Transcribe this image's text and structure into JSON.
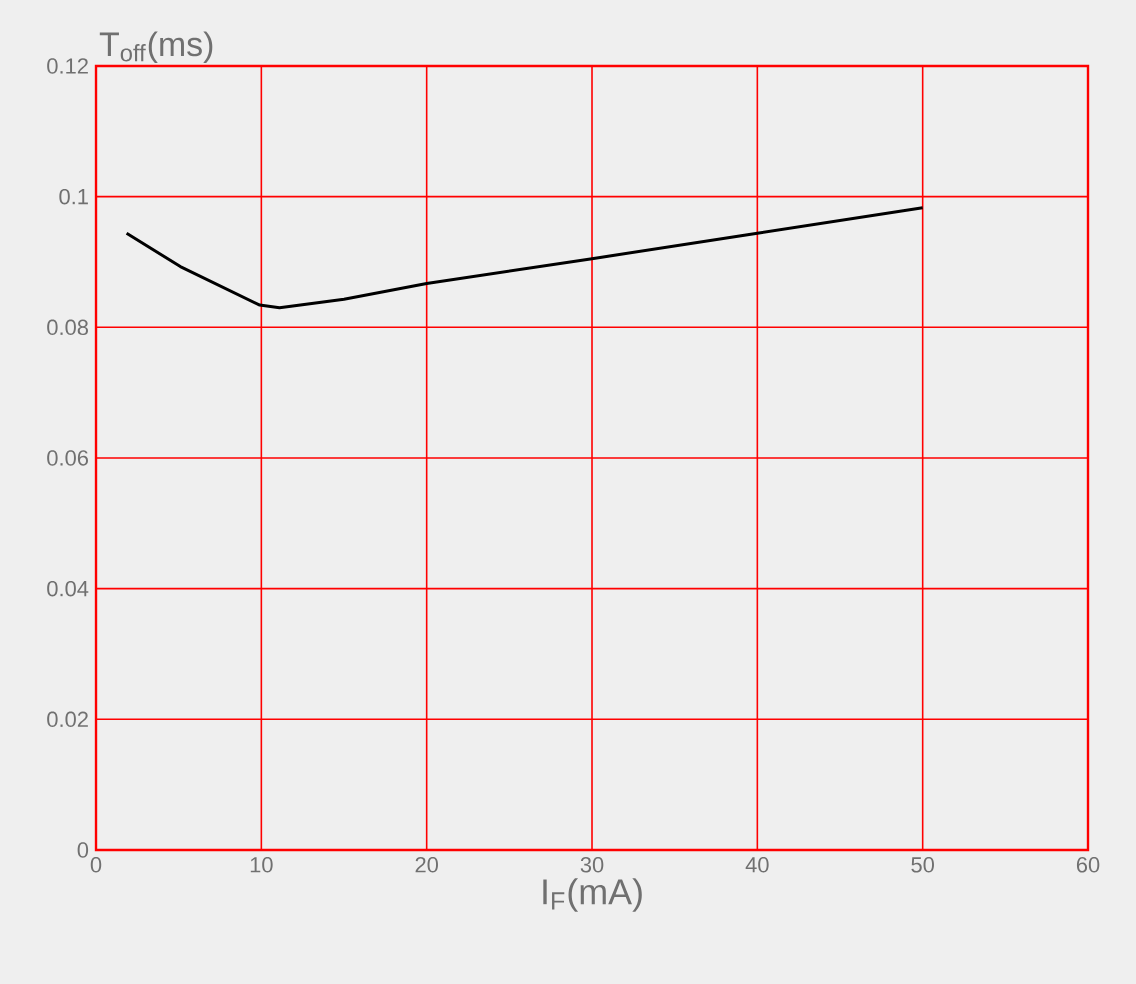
{
  "chart_data": {
    "type": "line",
    "xlabel": "I$_{F}$(mA)",
    "ylabel": "T$_{off}$(ms)",
    "x": [
      1.85,
      5.1,
      9.9,
      11.1,
      15,
      20,
      30,
      40,
      50
    ],
    "series": [
      {
        "color": "#000000",
        "values": [
          0.0944,
          0.0893,
          0.0834,
          0.083,
          0.0843,
          0.0867,
          0.0905,
          0.0944,
          0.0983
        ]
      }
    ],
    "xlim": [
      0,
      60
    ],
    "ylim": [
      0,
      0.12
    ],
    "xticks": [
      0,
      10,
      20,
      30,
      40,
      50,
      60
    ],
    "yticks": [
      0,
      0.02,
      0.04,
      0.06,
      0.08,
      0.1,
      0.12
    ],
    "grid": true,
    "marker": "none",
    "line_style": "solid"
  }
}
